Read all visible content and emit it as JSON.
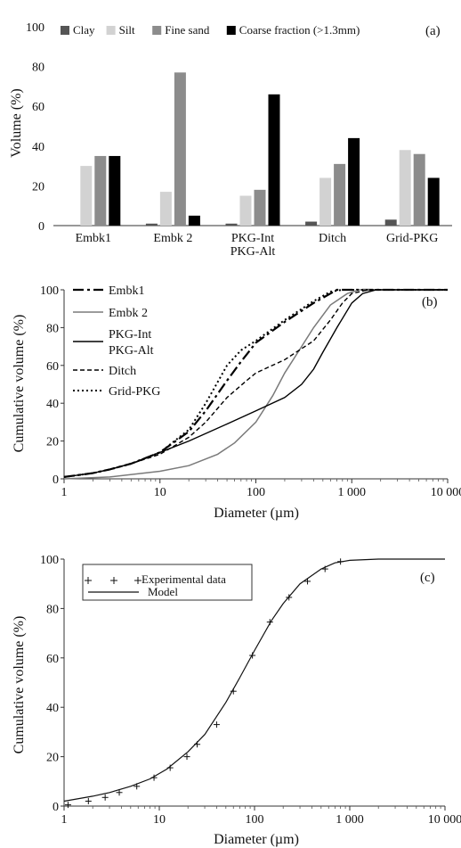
{
  "chart_data": [
    {
      "panel": "(a)",
      "type": "bar",
      "ylabel": "Volume (%)",
      "ylim": [
        0,
        100
      ],
      "yticks": [
        0,
        20,
        40,
        60,
        80,
        100
      ],
      "categories": [
        "Embk1",
        "Embk 2",
        "PKG-Int\nPKG-Alt",
        "Ditch",
        "Grid-PKG"
      ],
      "series": [
        {
          "name": "Clay",
          "color": "#555555",
          "values": [
            0,
            1,
            1,
            2,
            3
          ]
        },
        {
          "name": "Silt",
          "color": "#d2d2d2",
          "values": [
            30,
            17,
            15,
            24,
            38
          ]
        },
        {
          "name": "Fine sand",
          "color": "#8c8c8c",
          "values": [
            35,
            77,
            18,
            31,
            36
          ]
        },
        {
          "name": "Coarse fraction (>1.3mm)",
          "color": "#000000",
          "values": [
            35,
            5,
            66,
            44,
            24
          ]
        }
      ],
      "legend_position": "top"
    },
    {
      "panel": "(b)",
      "type": "line",
      "xscale": "log",
      "xlabel": "Diameter  (µm)",
      "ylabel": "Cumulative volume (%)",
      "xlim": [
        1,
        10000
      ],
      "ylim": [
        0,
        100
      ],
      "xticks": [
        1,
        10,
        100,
        1000,
        10000
      ],
      "xtick_labels": [
        "1",
        "10",
        "100",
        "1 000",
        "10 000"
      ],
      "yticks": [
        0,
        20,
        40,
        60,
        80,
        100
      ],
      "series": [
        {
          "name": "Embk1",
          "color": "#000000",
          "dash": "12,4,3,4",
          "width": 2.2,
          "x": [
            1,
            2,
            3,
            5,
            10,
            20,
            30,
            50,
            70,
            100,
            200,
            400,
            600,
            700,
            800,
            1000,
            10000
          ],
          "y": [
            1,
            3,
            5,
            8,
            14,
            25,
            36,
            52,
            62,
            72,
            83,
            93,
            98,
            100,
            100,
            100,
            100
          ]
        },
        {
          "name": "Embk 2",
          "color": "#7a7a7a",
          "dash": "",
          "width": 1.5,
          "x": [
            1,
            3,
            10,
            20,
            40,
            60,
            100,
            150,
            200,
            300,
            400,
            600,
            900,
            1200,
            1500,
            2000,
            10000
          ],
          "y": [
            0,
            1,
            4,
            7,
            13,
            19,
            30,
            44,
            56,
            70,
            80,
            92,
            98,
            100,
            100,
            100,
            100
          ]
        },
        {
          "name": "PKG-Int\nPKG-Alt",
          "color": "#000000",
          "dash": "",
          "width": 1.4,
          "x": [
            1,
            2,
            3,
            5,
            10,
            20,
            50,
            100,
            200,
            300,
            400,
            500,
            700,
            1000,
            1300,
            1800,
            10000
          ],
          "y": [
            1,
            3,
            5,
            8,
            14,
            20,
            29,
            36,
            43,
            50,
            58,
            67,
            80,
            93,
            98,
            100,
            100
          ]
        },
        {
          "name": "Ditch",
          "color": "#000000",
          "dash": "5,3",
          "width": 1.4,
          "x": [
            1,
            2,
            3,
            5,
            10,
            20,
            30,
            50,
            80,
            100,
            200,
            400,
            600,
            800,
            1000,
            1500,
            10000
          ],
          "y": [
            1,
            3,
            5,
            8,
            13,
            22,
            30,
            43,
            52,
            56,
            63,
            73,
            84,
            93,
            98,
            100,
            100
          ]
        },
        {
          "name": "Grid-PKG",
          "color": "#000000",
          "dash": "2,3",
          "width": 2.0,
          "x": [
            1,
            2,
            3,
            5,
            10,
            20,
            30,
            50,
            70,
            100,
            200,
            400,
            600,
            800,
            10000
          ],
          "y": [
            1,
            3,
            5,
            8,
            14,
            26,
            40,
            60,
            68,
            73,
            84,
            94,
            99,
            100,
            100
          ]
        }
      ],
      "legend_position": "top-left"
    },
    {
      "panel": "(c)",
      "type": "scatter",
      "xscale": "log",
      "xlabel": "Diameter  (µm)",
      "ylabel": "Cumulative volume (%)",
      "xlim": [
        1,
        10000
      ],
      "ylim": [
        0,
        100
      ],
      "xticks": [
        1,
        10,
        100,
        1000,
        10000
      ],
      "xtick_labels": [
        "1",
        "10",
        "100",
        "1 000",
        "10 000"
      ],
      "yticks": [
        0,
        20,
        40,
        60,
        80,
        100
      ],
      "series": [
        {
          "name": "Experimental data",
          "marker": "+",
          "x": [
            1.1,
            1.8,
            2.7,
            3.8,
            5.8,
            8.8,
            13,
            19.5,
            25,
            40,
            60,
            95,
            145,
            230,
            360,
            550,
            800
          ],
          "y": [
            0.5,
            2,
            3.5,
            5.5,
            8,
            11.5,
            15.5,
            20,
            25,
            33,
            46.5,
            61,
            74.5,
            84.5,
            91,
            96,
            99
          ]
        },
        {
          "name": "Model",
          "marker": "line",
          "x": [
            1,
            2,
            3,
            5,
            8,
            12,
            20,
            30,
            50,
            70,
            100,
            150,
            200,
            300,
            500,
            700,
            1000,
            2000,
            10000
          ],
          "y": [
            2,
            4,
            5.5,
            8,
            11,
            15,
            22,
            29,
            42,
            52,
            63,
            75,
            82,
            90,
            96,
            98.5,
            99.5,
            100,
            100
          ]
        }
      ],
      "legend_position": "top-left"
    }
  ],
  "panel_labels": [
    "(a)",
    "(b)",
    "(c)"
  ]
}
